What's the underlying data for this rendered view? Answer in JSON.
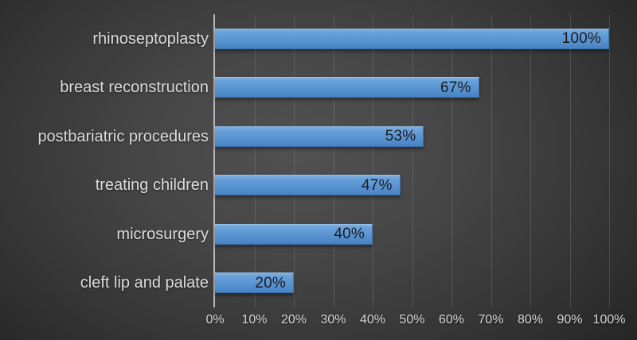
{
  "colors": {
    "background_center": "#4f4f4f",
    "background_edge": "#212121",
    "bar_fill_top": "#7db0e0",
    "bar_fill_bottom": "#4682c3",
    "axis_line": "#b7b7b7",
    "gridline": "rgba(255,255,255,0.13)",
    "category_label_text": "#dcdcdc",
    "tick_label_text": "#d6d6d6",
    "data_label_text": "#1c1c1c"
  },
  "chart_data": {
    "type": "bar",
    "orientation": "horizontal",
    "title": "",
    "xlabel": "",
    "ylabel": "",
    "categories": [
      "rhinoseptoplasty",
      "breast reconstruction",
      "postbariatric procedures",
      "treating children",
      "microsurgery",
      "cleft lip and palate"
    ],
    "values": [
      100,
      67,
      53,
      47,
      40,
      20
    ],
    "data_labels": [
      "100%",
      "67%",
      "53%",
      "47%",
      "40%",
      "20%"
    ],
    "x_ticks": [
      0,
      10,
      20,
      30,
      40,
      50,
      60,
      70,
      80,
      90,
      100
    ],
    "x_tick_labels": [
      "0%",
      "10%",
      "20%",
      "30%",
      "40%",
      "50%",
      "60%",
      "70%",
      "80%",
      "90%",
      "100%"
    ],
    "xlim": [
      0,
      100
    ],
    "grid": true,
    "legend": false,
    "data_labels_position": "inside-end"
  }
}
